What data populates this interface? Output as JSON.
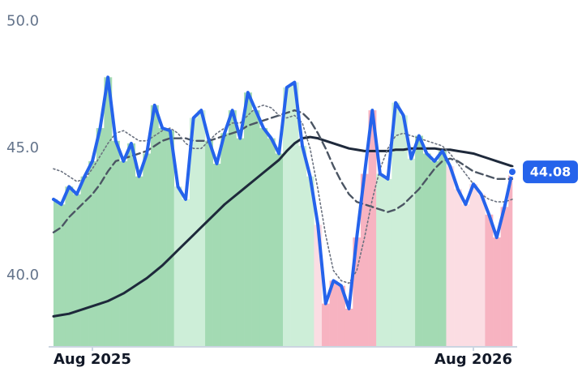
{
  "chart_data": {
    "type": "line",
    "categories": [
      null,
      null,
      null,
      null,
      null,
      "Aug 2025",
      null,
      null,
      null,
      null,
      null,
      null,
      null,
      null,
      null,
      null,
      null,
      null,
      null,
      null,
      null,
      null,
      null,
      null,
      null,
      null,
      null,
      null,
      null,
      null,
      null,
      null,
      null,
      null,
      null,
      null,
      null,
      null,
      null,
      null,
      null,
      null,
      null,
      null,
      null,
      null,
      null,
      null,
      null,
      null,
      null,
      null,
      null,
      null,
      "Aug 2026",
      null,
      null,
      null,
      null,
      null
    ],
    "series": [
      {
        "color": "#2563eb",
        "width": 4,
        "dash": "none",
        "values": [
          43.0,
          42.8,
          43.5,
          43.2,
          43.9,
          44.5,
          45.8,
          47.8,
          45.3,
          44.5,
          45.2,
          43.9,
          44.8,
          46.7,
          45.8,
          45.7,
          43.5,
          43.0,
          46.2,
          46.5,
          45.3,
          44.4,
          45.6,
          46.5,
          45.4,
          47.2,
          46.5,
          45.8,
          45.4,
          44.8,
          47.4,
          47.6,
          45.1,
          43.9,
          42.0,
          38.9,
          39.8,
          39.6,
          38.7,
          41.5,
          44.0,
          46.5,
          44.0,
          43.8,
          46.8,
          46.3,
          44.6,
          45.5,
          44.8,
          44.5,
          44.9,
          44.3,
          43.4,
          42.8,
          43.6,
          43.2,
          42.4,
          41.5,
          42.7,
          44.08
        ],
        "fill_colors": [
          "#a3dab3",
          "#a3dab3",
          "#a3dab3",
          "#a3dab3",
          "#a3dab3",
          "#a3dab3",
          "#a3dab3",
          "#a3dab3",
          "#a3dab3",
          "#a3dab3",
          "#a3dab3",
          "#a3dab3",
          "#a3dab3",
          "#a3dab3",
          "#a3dab3",
          "#a3dab3",
          "#cdeed8",
          "#cdeed8",
          "#cdeed8",
          "#cdeed8",
          "#a3dab3",
          "#a3dab3",
          "#a3dab3",
          "#a3dab3",
          "#a3dab3",
          "#a3dab3",
          "#a3dab3",
          "#a3dab3",
          "#a3dab3",
          "#a3dab3",
          "#cdeed8",
          "#cdeed8",
          "#cdeed8",
          "#cdeed8",
          "#fbdde3",
          "#f7b3c1",
          "#f7b3c1",
          "#f7b3c1",
          "#f7b3c1",
          "#f7b3c1",
          "#f7b3c1",
          "#f7b3c1",
          "#cdeed8",
          "#cdeed8",
          "#cdeed8",
          "#cdeed8",
          "#cdeed8",
          "#a3dab3",
          "#a3dab3",
          "#a3dab3",
          "#a3dab3",
          "#fbdde3",
          "#fbdde3",
          "#fbdde3",
          "#fbdde3",
          "#fbdde3",
          "#f7b3c1",
          "#f7b3c1",
          "#f7b3c1",
          "#f7b3c1"
        ]
      },
      {
        "color": "#6b7280",
        "width": 1.6,
        "dash": "2 3",
        "values": [
          44.2,
          44.1,
          43.9,
          43.7,
          43.8,
          44.2,
          44.7,
          45.2,
          45.6,
          45.7,
          45.5,
          45.3,
          45.3,
          45.5,
          45.7,
          45.8,
          45.6,
          45.2,
          45.0,
          45.0,
          45.3,
          45.6,
          45.8,
          46.0,
          46.0,
          46.3,
          46.6,
          46.7,
          46.6,
          46.3,
          46.2,
          46.3,
          46.0,
          45.0,
          43.4,
          41.6,
          40.2,
          39.8,
          39.7,
          40.2,
          41.5,
          43.0,
          44.2,
          45.0,
          45.5,
          45.6,
          45.5,
          45.4,
          45.3,
          45.2,
          45.1,
          44.8,
          44.4,
          44.0,
          43.6,
          43.2,
          43.0,
          42.9,
          42.9,
          43.0
        ]
      },
      {
        "color": "#4b5563",
        "width": 2.4,
        "dash": "9 5",
        "values": [
          41.7,
          41.9,
          42.3,
          42.6,
          42.9,
          43.2,
          43.6,
          44.1,
          44.5,
          44.6,
          44.7,
          44.8,
          44.9,
          45.1,
          45.3,
          45.4,
          45.4,
          45.4,
          45.3,
          45.3,
          45.3,
          45.4,
          45.5,
          45.6,
          45.7,
          45.9,
          46.0,
          46.1,
          46.2,
          46.3,
          46.4,
          46.5,
          46.4,
          46.1,
          45.6,
          45.0,
          44.3,
          43.7,
          43.2,
          42.9,
          42.8,
          42.7,
          42.6,
          42.5,
          42.6,
          42.8,
          43.1,
          43.4,
          43.8,
          44.2,
          44.5,
          44.6,
          44.5,
          44.3,
          44.1,
          44.0,
          43.9,
          43.8,
          43.8,
          43.8
        ]
      },
      {
        "color": "#1e293b",
        "width": 3,
        "dash": "none",
        "values": [
          38.4,
          38.45,
          38.5,
          38.6,
          38.7,
          38.8,
          38.9,
          39.0,
          39.15,
          39.3,
          39.5,
          39.7,
          39.9,
          40.15,
          40.4,
          40.7,
          41.0,
          41.3,
          41.6,
          41.9,
          42.2,
          42.5,
          42.8,
          43.05,
          43.3,
          43.55,
          43.8,
          44.05,
          44.3,
          44.55,
          44.9,
          45.2,
          45.4,
          45.45,
          45.4,
          45.3,
          45.2,
          45.1,
          45.0,
          44.95,
          44.9,
          44.9,
          44.9,
          44.9,
          44.95,
          44.95,
          45.0,
          45.0,
          45.0,
          45.0,
          44.95,
          44.95,
          44.9,
          44.85,
          44.8,
          44.7,
          44.6,
          44.5,
          44.4,
          44.3
        ]
      }
    ],
    "ylim": [
      37.2,
      50.2
    ],
    "yticks": [
      {
        "value": 40,
        "label": "40.0"
      },
      {
        "value": 45,
        "label": "45.0"
      },
      {
        "value": 50,
        "label": "50.0"
      }
    ],
    "grid": false
  }
}
